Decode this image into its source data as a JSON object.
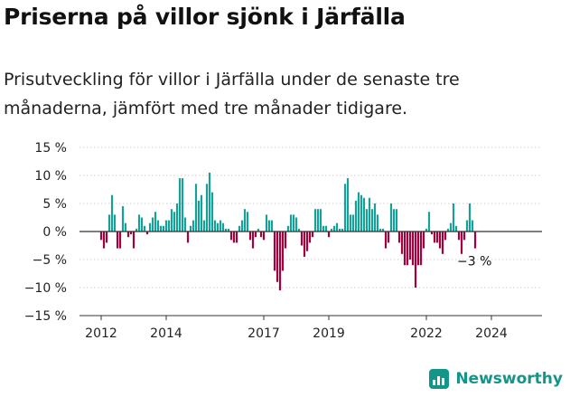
{
  "title": "Priserna på villor sjönk i Järfälla",
  "subtitle": "Prisutveckling för villor i Järfälla under de senaste tre månaderna, jämfört med tre månader tidigare.",
  "brand": {
    "name": "Newsworthy",
    "icon": "newsworthy-logo-icon"
  },
  "colors": {
    "positive": "#16a198",
    "negative": "#a3003f",
    "axis": "#333333",
    "grid": "#cfcfcf"
  },
  "chart_data": {
    "type": "bar",
    "ylabel": "",
    "xlabel": "",
    "ylim": [
      -15,
      15
    ],
    "yticks": [
      15,
      10,
      5,
      0,
      -5,
      -10,
      -15
    ],
    "ytick_labels": [
      "15 %",
      "10 %",
      "5 %",
      "0 %",
      "−5 %",
      "−10 %",
      "−15 %"
    ],
    "xticks": [
      {
        "label": "2012",
        "year": 2012
      },
      {
        "label": "2014",
        "year": 2014
      },
      {
        "label": "2017",
        "year": 2017
      },
      {
        "label": "2019",
        "year": 2019
      },
      {
        "label": "2022",
        "year": 2022
      },
      {
        "label": "2024",
        "year": 2024
      }
    ],
    "start": "2012-01",
    "values": [
      -1.5,
      -3,
      -2,
      3,
      6.5,
      3,
      -3,
      -3,
      4.5,
      1.5,
      -1,
      -0.5,
      -3,
      0.5,
      3,
      2.5,
      1,
      -0.5,
      1.5,
      2.5,
      3.5,
      2,
      1,
      1,
      2,
      2,
      4,
      3.5,
      5,
      9.5,
      9.5,
      2.5,
      -2,
      1,
      2,
      8.5,
      5.5,
      6.5,
      2,
      8.5,
      10.5,
      7,
      2,
      1.5,
      2,
      1.5,
      0.5,
      0.5,
      -1.5,
      -2,
      -2,
      1,
      2,
      4,
      3.5,
      -1.5,
      -3,
      -1,
      0.5,
      -1,
      -1.5,
      3,
      2,
      2,
      -7,
      -9,
      -10.5,
      -7,
      -3,
      1,
      3,
      3,
      2.5,
      0.5,
      -2.5,
      -4.5,
      -3.5,
      -2,
      -1,
      4,
      4,
      4,
      1,
      1,
      -1,
      0.5,
      1,
      1.5,
      0.5,
      0.5,
      8.5,
      9.5,
      3,
      3,
      5.5,
      7,
      6.5,
      6,
      4,
      6,
      4,
      5,
      3,
      0.5,
      0.5,
      -3,
      -2,
      5,
      4,
      4,
      -2,
      -4,
      -6,
      -6,
      -5,
      -6,
      -10,
      -6,
      -6,
      -3,
      0.5,
      3.5,
      -0.5,
      -2,
      -2,
      -3,
      -4,
      -1.5,
      0.5,
      1.5,
      5,
      1,
      -1.5,
      -4,
      -1.5,
      2,
      5,
      2,
      -3
    ],
    "annotation": {
      "label": "−3 %",
      "value": -3
    }
  }
}
